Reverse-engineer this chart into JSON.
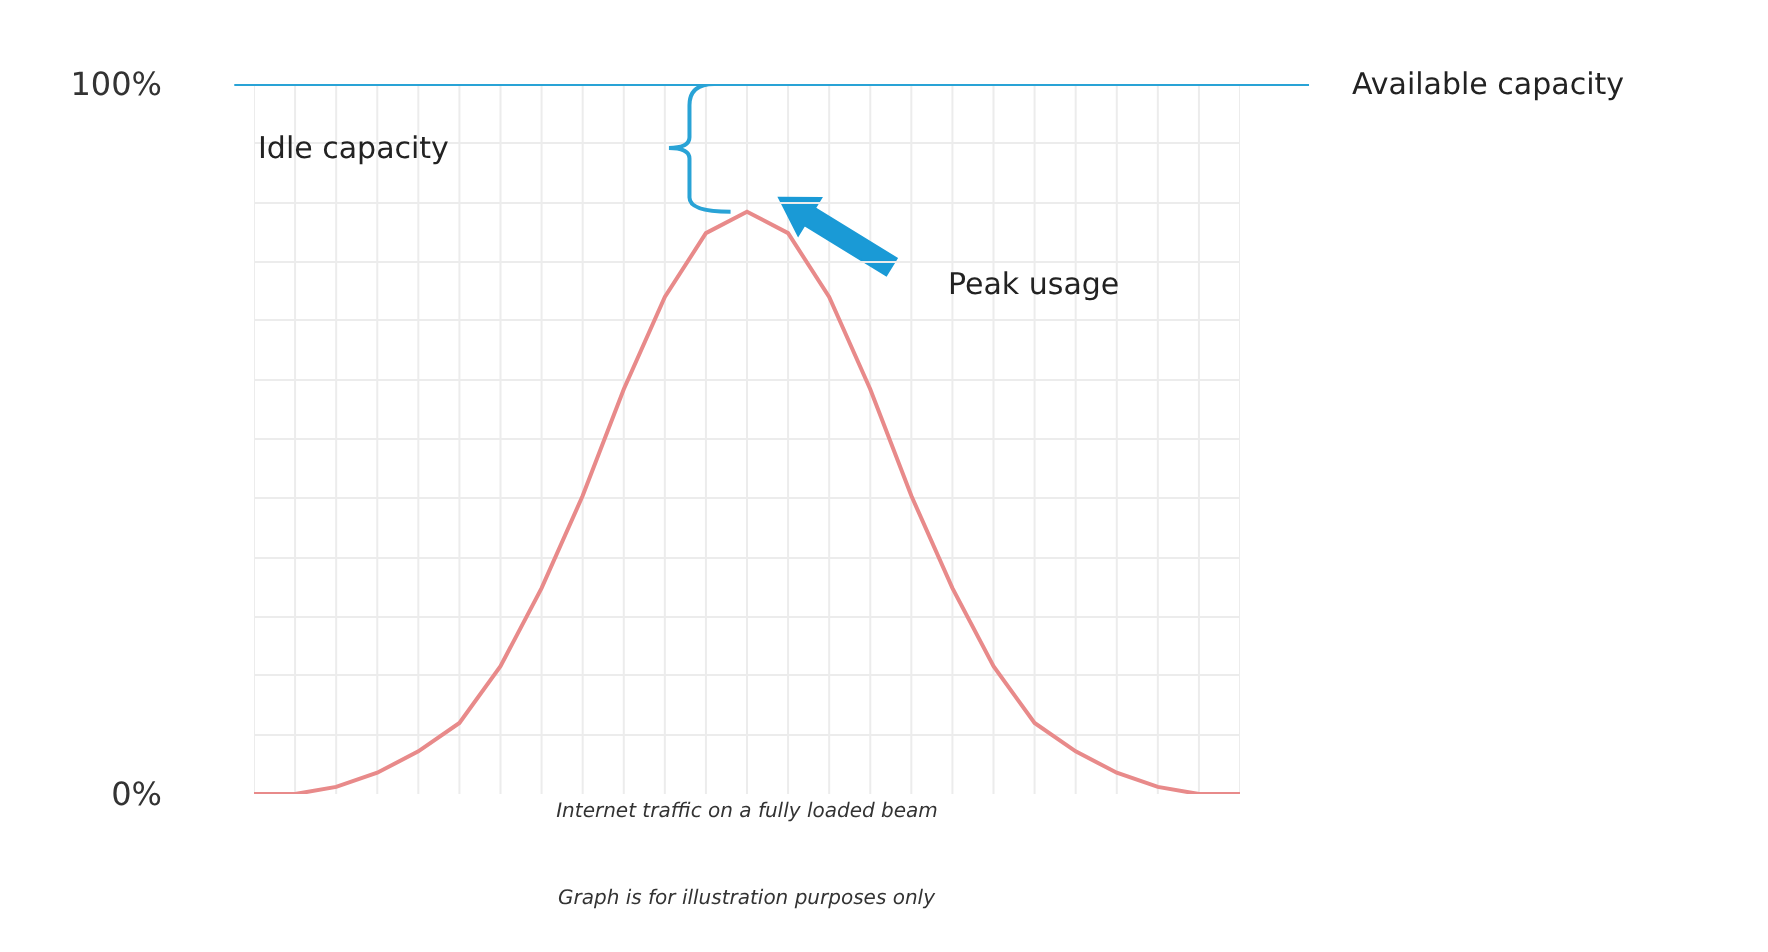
{
  "chart_data": {
    "type": "line",
    "xlabel": "Internet traffic on a fully loaded beam",
    "categories": [
      null,
      null,
      null,
      null,
      null,
      null,
      null,
      null,
      null,
      null,
      null,
      null,
      null,
      null,
      null,
      null,
      null,
      null,
      null,
      null,
      null,
      null,
      null,
      null,
      null
    ],
    "series": [
      {
        "color": "#e88a8a",
        "values": [
          0,
          0,
          1,
          3,
          6,
          10,
          18,
          29,
          42,
          57,
          70,
          79,
          82,
          79,
          70,
          57,
          42,
          29,
          18,
          10,
          6,
          3,
          1,
          0,
          0
        ]
      }
    ],
    "ylim": [
      0,
      100
    ],
    "yticks": [
      {
        "value": 0,
        "label": "0%"
      },
      {
        "value": 8.3,
        "label": null
      },
      {
        "value": 16.7,
        "label": null
      },
      {
        "value": 25,
        "label": null
      },
      {
        "value": 33.3,
        "label": null
      },
      {
        "value": 41.7,
        "label": null
      },
      {
        "value": 50,
        "label": null
      },
      {
        "value": 58.3,
        "label": null
      },
      {
        "value": 66.7,
        "label": null
      },
      {
        "value": 75,
        "label": null
      },
      {
        "value": 83.3,
        "label": null
      },
      {
        "value": 91.7,
        "label": null
      },
      {
        "value": 100,
        "label": "100%"
      }
    ],
    "ref_lines": [
      {
        "axis": "y",
        "value": 100,
        "label": "Available capacity",
        "color": "#29a3d6"
      }
    ],
    "annotations": [
      "Idle capacity",
      "Peak usage",
      "Graph is for illustration purposes only"
    ],
    "grid": true,
    "legend": false,
    "marker": "none",
    "line_style": "solid"
  }
}
